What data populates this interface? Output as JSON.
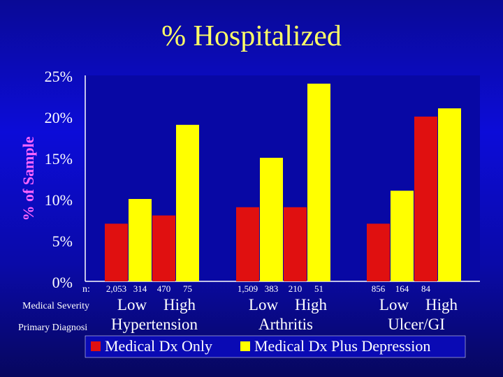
{
  "slide": {
    "title": "% Hospitalized"
  },
  "chart_data": {
    "type": "bar",
    "title": "% Hospitalized",
    "ylabel": "% of Sample",
    "xlabel": "",
    "ylim": [
      0,
      25
    ],
    "yticks": [
      "0%",
      "5%",
      "10%",
      "15%",
      "20%",
      "25%"
    ],
    "grid": false,
    "legend": "bottom",
    "row_labels": {
      "n": "n:",
      "severity": "Medical Severity",
      "diagnosis": "Primary Diagnosi"
    },
    "groups": [
      {
        "diagnosis": "Hypertension",
        "severity": [
          "Low",
          "High"
        ]
      },
      {
        "diagnosis": "Arthritis",
        "severity": [
          "Low",
          "High"
        ]
      },
      {
        "diagnosis": "Ulcer/GI",
        "severity": [
          "Low",
          "High"
        ]
      }
    ],
    "categories": [
      "Hypertension Low",
      "Hypertension High",
      "Arthritis Low",
      "Arthritis High",
      "Ulcer/GI Low",
      "Ulcer/GI High"
    ],
    "series": [
      {
        "name": "Medical Dx Only",
        "color": "#e01010",
        "values": [
          7,
          8,
          9,
          9,
          7,
          20
        ],
        "n": [
          "2,053",
          "470",
          "1,509",
          "210",
          "856",
          "84"
        ]
      },
      {
        "name": "Medical Dx Plus Depression",
        "color": "#ffff00",
        "values": [
          10,
          19,
          15,
          24,
          11,
          21
        ],
        "n": [
          "314",
          "75",
          "383",
          "51",
          "164",
          ""
        ]
      }
    ]
  }
}
